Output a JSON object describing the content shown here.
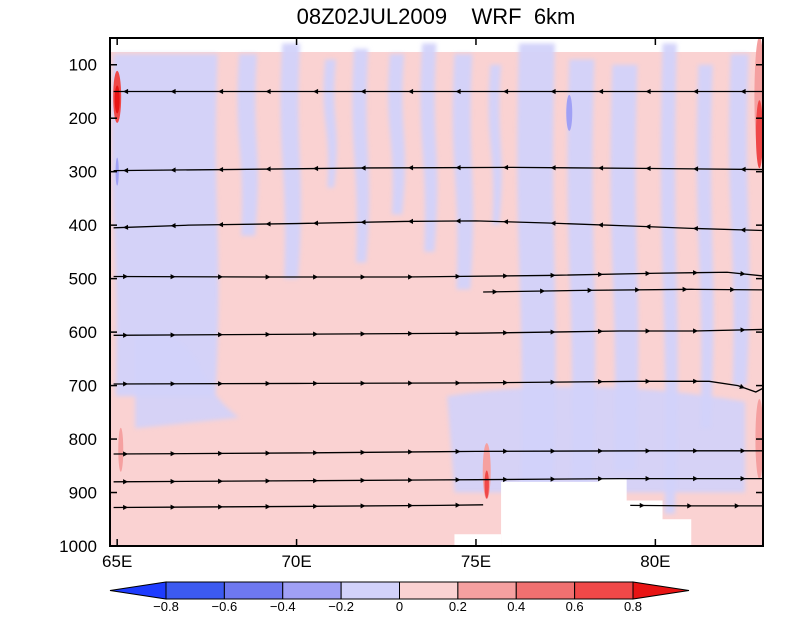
{
  "chart_data": {
    "type": "heatmap",
    "title": "08Z02JUL2009    WRF  6km",
    "xlabel": "",
    "ylabel": "",
    "xlim": [
      64.8,
      83.0
    ],
    "ylim": [
      1000,
      50
    ],
    "x_ticks": [
      {
        "value": 65,
        "label": "65E"
      },
      {
        "value": 70,
        "label": "70E"
      },
      {
        "value": 75,
        "label": "75E"
      },
      {
        "value": 80,
        "label": "80E"
      }
    ],
    "y_ticks": [
      {
        "value": 100,
        "label": "100"
      },
      {
        "value": 200,
        "label": "200"
      },
      {
        "value": 300,
        "label": "300"
      },
      {
        "value": 400,
        "label": "400"
      },
      {
        "value": 500,
        "label": "500"
      },
      {
        "value": 600,
        "label": "600"
      },
      {
        "value": 700,
        "label": "700"
      },
      {
        "value": 800,
        "label": "800"
      },
      {
        "value": 900,
        "label": "900"
      },
      {
        "value": 1000,
        "label": "1000"
      }
    ],
    "colorbar": {
      "levels": [
        -0.8,
        -0.6,
        -0.4,
        -0.2,
        0,
        0.2,
        0.4,
        0.6,
        0.8
      ],
      "labels": [
        "−0.8",
        "−0.6",
        "−0.4",
        "−0.2",
        "0",
        "0.2",
        "0.4",
        "0.6",
        "0.8"
      ],
      "colors": [
        "#1e3cff",
        "#3c5af0",
        "#6e78f0",
        "#a0a0f5",
        "#d2d2fa",
        "#fad2d2",
        "#f5a0a0",
        "#f07070",
        "#f04848",
        "#e81414"
      ]
    },
    "terrain": [
      {
        "x": 75.7,
        "p": 880
      },
      {
        "x": 76.8,
        "p": 880
      },
      {
        "x": 78.4,
        "p": 875
      },
      {
        "x": 79.2,
        "p": 915
      },
      {
        "x": 80.2,
        "p": 950
      },
      {
        "x": 81.0,
        "p": 975
      }
    ],
    "streamlines": [
      {
        "direction": "west",
        "points": [
          [
            64.9,
            150
          ],
          [
            70,
            150
          ],
          [
            75,
            150
          ],
          [
            80,
            150
          ],
          [
            83,
            150
          ]
        ]
      },
      {
        "direction": "west",
        "points": [
          [
            64.9,
            298
          ],
          [
            68,
            296
          ],
          [
            72,
            293
          ],
          [
            76,
            292
          ],
          [
            80,
            294
          ],
          [
            83,
            296
          ]
        ]
      },
      {
        "direction": "west",
        "points": [
          [
            64.9,
            405
          ],
          [
            67,
            400
          ],
          [
            70,
            397
          ],
          [
            73,
            393
          ],
          [
            75,
            392
          ],
          [
            77,
            396
          ],
          [
            79.5,
            402
          ],
          [
            81,
            406
          ],
          [
            83,
            410
          ]
        ]
      },
      {
        "direction": "east",
        "points": [
          [
            64.9,
            496
          ],
          [
            69,
            497
          ],
          [
            73,
            497
          ],
          [
            77,
            494
          ],
          [
            80,
            490
          ],
          [
            82,
            488
          ],
          [
            83,
            495
          ]
        ]
      },
      {
        "direction": "east",
        "points": [
          [
            75.2,
            525
          ],
          [
            78,
            522
          ],
          [
            81,
            520
          ],
          [
            83,
            521
          ]
        ]
      },
      {
        "direction": "east",
        "points": [
          [
            64.9,
            606
          ],
          [
            70,
            604
          ],
          [
            75,
            602
          ],
          [
            79,
            598
          ],
          [
            81,
            598
          ],
          [
            83,
            595
          ]
        ]
      },
      {
        "direction": "east",
        "points": [
          [
            64.9,
            697
          ],
          [
            70,
            696
          ],
          [
            75,
            695
          ],
          [
            79.5,
            692
          ],
          [
            81.5,
            692
          ],
          [
            82.3,
            700
          ],
          [
            82.8,
            712
          ],
          [
            83,
            705
          ]
        ]
      },
      {
        "direction": "east",
        "points": [
          [
            64.9,
            828
          ],
          [
            70,
            826
          ],
          [
            75,
            823
          ],
          [
            80,
            822
          ],
          [
            83,
            822
          ]
        ]
      },
      {
        "direction": "east",
        "points": [
          [
            64.9,
            880
          ],
          [
            70,
            878
          ],
          [
            75,
            876
          ],
          [
            79,
            874
          ],
          [
            83,
            874
          ]
        ]
      },
      {
        "direction": "east",
        "points": [
          [
            64.9,
            928
          ],
          [
            70,
            926
          ],
          [
            74,
            924
          ],
          [
            75.2,
            923
          ]
        ]
      },
      {
        "direction": "east",
        "points": [
          [
            79.3,
            924
          ],
          [
            81,
            925
          ],
          [
            83,
            925
          ]
        ]
      }
    ]
  }
}
